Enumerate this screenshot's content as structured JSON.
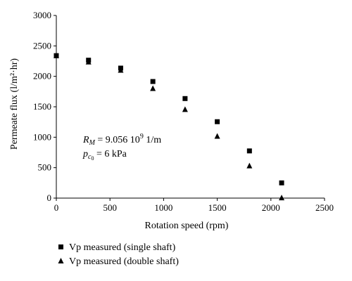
{
  "chart_data": {
    "type": "scatter",
    "title": "",
    "xlabel": "Rotation speed (rpm)",
    "ylabel": "Permeate flux (l/m²·hr)",
    "xlim": [
      0,
      2500
    ],
    "ylim": [
      0,
      3000
    ],
    "xticks": [
      0,
      500,
      1000,
      1500,
      2000,
      2500
    ],
    "yticks": [
      0,
      500,
      1000,
      1500,
      2000,
      2500,
      3000
    ],
    "grid": false,
    "legend_position": "bottom",
    "series": [
      {
        "name": "Vp measured (single shaft)",
        "marker": "square",
        "color": "#000000",
        "points": [
          {
            "x": 0,
            "y": 2340
          },
          {
            "x": 300,
            "y": 2265
          },
          {
            "x": 600,
            "y": 2135
          },
          {
            "x": 900,
            "y": 1915
          },
          {
            "x": 1200,
            "y": 1635
          },
          {
            "x": 1500,
            "y": 1255
          },
          {
            "x": 1800,
            "y": 775
          },
          {
            "x": 2100,
            "y": 250
          }
        ]
      },
      {
        "name": "Vp measured (double shaft)",
        "marker": "triangle",
        "color": "#000000",
        "points": [
          {
            "x": 0,
            "y": 2340
          },
          {
            "x": 300,
            "y": 2235
          },
          {
            "x": 600,
            "y": 2100
          },
          {
            "x": 900,
            "y": 1800
          },
          {
            "x": 1200,
            "y": 1455
          },
          {
            "x": 1500,
            "y": 1015
          },
          {
            "x": 1800,
            "y": 530
          },
          {
            "x": 2100,
            "y": 5
          }
        ]
      }
    ],
    "annotations": {
      "rm_symbol": "R",
      "rm_subscript": "M",
      "rm_text": " = 9.056 10",
      "rm_exponent": "9",
      "rm_unit": " 1/m",
      "pc_symbol": "p",
      "pc_sub1": "c",
      "pc_sub2": "0",
      "pc_text": " = 6 kPa"
    }
  }
}
